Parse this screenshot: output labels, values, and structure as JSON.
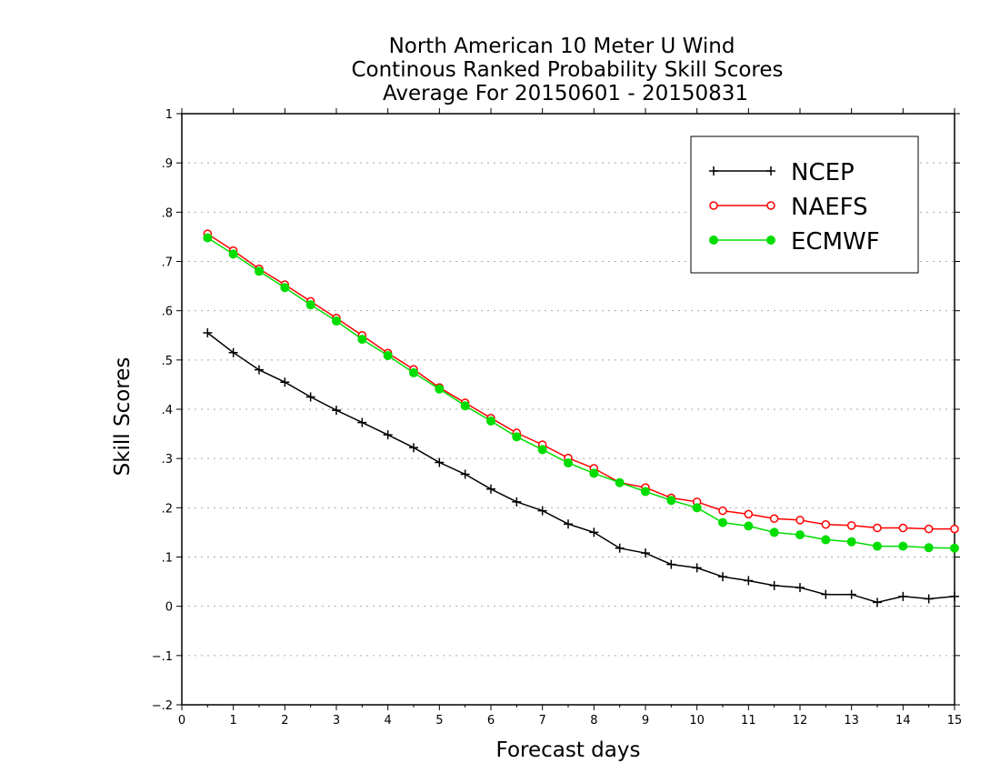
{
  "chart_data": {
    "type": "line",
    "title": [
      "North American 10 Meter U Wind",
      "Continous Ranked Probability Skill Scores",
      "Average For 20150601 - 20150831"
    ],
    "xlabel": "Forecast days",
    "ylabel": "Skill Scores",
    "xlim": [
      0,
      15
    ],
    "ylim": [
      -0.2,
      1
    ],
    "x_ticks": [
      0,
      1,
      2,
      3,
      4,
      5,
      6,
      7,
      8,
      9,
      10,
      11,
      12,
      13,
      14,
      15
    ],
    "y_ticks": [
      -0.2,
      -0.1,
      0,
      0.1,
      0.2,
      0.3,
      0.4,
      0.5,
      0.6,
      0.7,
      0.8,
      0.9,
      1
    ],
    "grid": "horizontal dotted",
    "legend_position": "top-right",
    "x": [
      0.5,
      1,
      1.5,
      2,
      2.5,
      3,
      3.5,
      4,
      4.5,
      5,
      5.5,
      6,
      6.5,
      7,
      7.5,
      8,
      8.5,
      9,
      9.5,
      10,
      10.5,
      11,
      11.5,
      12,
      12.5,
      13,
      13.5,
      14,
      14.5,
      15
    ],
    "series": [
      {
        "name": "NCEP",
        "color": "#000000",
        "marker": "plus",
        "values": [
          0.555,
          0.515,
          0.48,
          0.455,
          0.425,
          0.398,
          0.373,
          0.348,
          0.322,
          0.292,
          0.268,
          0.238,
          0.212,
          0.194,
          0.167,
          0.15,
          0.118,
          0.108,
          0.085,
          0.078,
          0.06,
          0.052,
          0.042,
          0.038,
          0.024,
          0.024,
          0.008,
          0.02,
          0.015,
          0.02
        ]
      },
      {
        "name": "NAEFS",
        "color": "#ff0000",
        "marker": "open-circle",
        "values": [
          0.756,
          0.722,
          0.685,
          0.653,
          0.619,
          0.585,
          0.55,
          0.514,
          0.481,
          0.444,
          0.413,
          0.382,
          0.352,
          0.328,
          0.301,
          0.28,
          0.251,
          0.241,
          0.22,
          0.212,
          0.194,
          0.187,
          0.178,
          0.175,
          0.166,
          0.164,
          0.159,
          0.159,
          0.157,
          0.157
        ]
      },
      {
        "name": "ECMWF",
        "color": "#00dd00",
        "marker": "filled-circle",
        "values": [
          0.748,
          0.715,
          0.68,
          0.647,
          0.612,
          0.579,
          0.542,
          0.509,
          0.474,
          0.441,
          0.407,
          0.376,
          0.344,
          0.318,
          0.291,
          0.27,
          0.251,
          0.233,
          0.215,
          0.2,
          0.17,
          0.163,
          0.15,
          0.145,
          0.135,
          0.131,
          0.122,
          0.122,
          0.119,
          0.118
        ]
      }
    ]
  }
}
